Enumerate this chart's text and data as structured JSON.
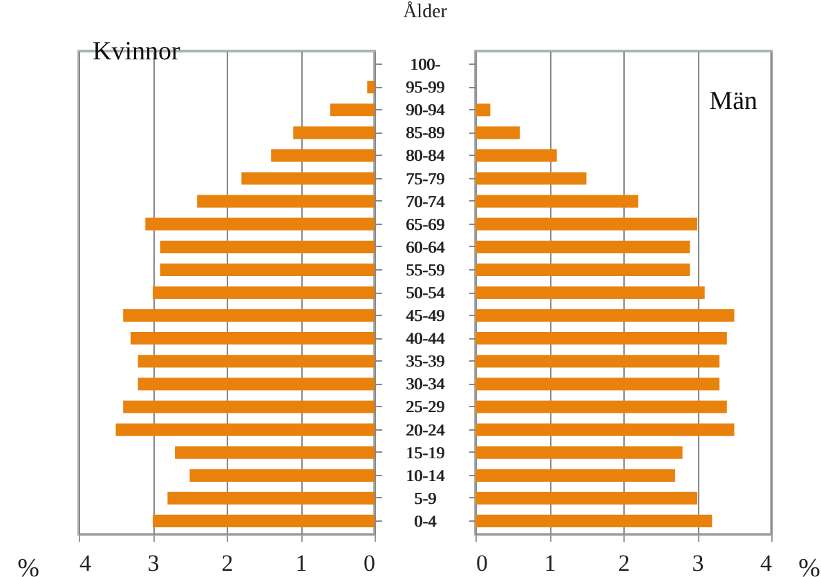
{
  "chart_data": [
    {
      "type": "bar",
      "orientation": "horizontal",
      "title": "Kvinnor",
      "ylabel": "Ålder",
      "xlabel": "%",
      "categories": [
        "100-",
        "95-99",
        "90-94",
        "85-89",
        "80-84",
        "75-79",
        "70-74",
        "65-69",
        "60-64",
        "55-59",
        "50-54",
        "45-49",
        "40-44",
        "35-39",
        "30-34",
        "25-29",
        "20-24",
        "15-19",
        "10-14",
        "5-9",
        "0-4"
      ],
      "values": [
        0,
        0.1,
        0.6,
        1.1,
        1.4,
        1.8,
        2.4,
        3.1,
        2.9,
        2.9,
        3.0,
        3.4,
        3.3,
        3.2,
        3.2,
        3.4,
        3.5,
        2.7,
        2.5,
        2.8,
        3.0
      ],
      "color": "#e8820c",
      "xlim": [
        4,
        0
      ],
      "xticks": [
        4,
        3,
        2,
        1,
        0
      ],
      "grid": "x"
    },
    {
      "type": "bar",
      "orientation": "horizontal",
      "title": "Män",
      "xlabel": "%",
      "categories": [
        "100-",
        "95-99",
        "90-94",
        "85-89",
        "80-84",
        "75-79",
        "70-74",
        "65-69",
        "60-64",
        "55-59",
        "50-54",
        "45-49",
        "40-44",
        "35-39",
        "30-34",
        "25-29",
        "20-24",
        "15-19",
        "10-14",
        "5-9",
        "0-4"
      ],
      "values": [
        0,
        0,
        0.2,
        0.6,
        1.1,
        1.5,
        2.2,
        3.0,
        2.9,
        2.9,
        3.1,
        3.5,
        3.4,
        3.3,
        3.3,
        3.4,
        3.5,
        2.8,
        2.7,
        3.0,
        3.2
      ],
      "color": "#e8820c",
      "xlim": [
        0,
        4
      ],
      "xticks": [
        0,
        1,
        2,
        3,
        4
      ],
      "grid": "x"
    }
  ]
}
